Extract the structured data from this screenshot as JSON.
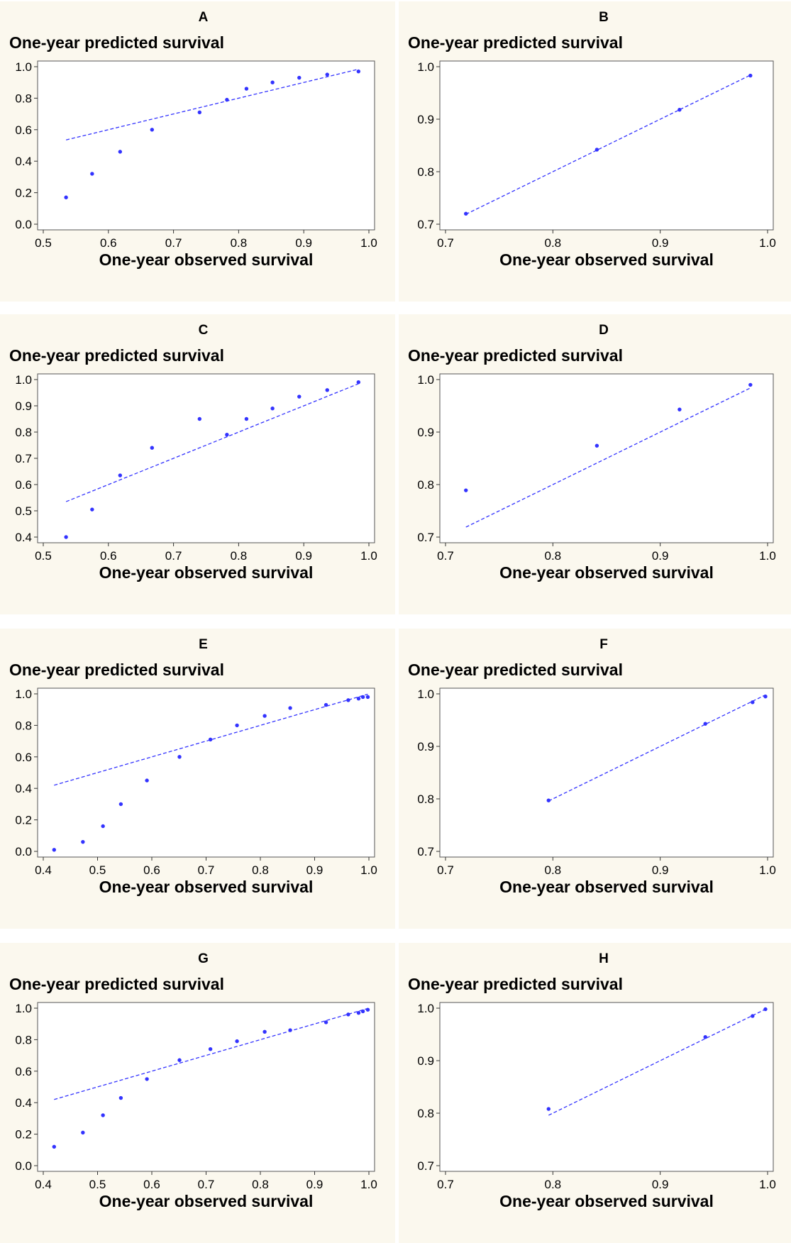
{
  "chart_data": [
    {
      "type": "scatter",
      "panel": "A",
      "xlabel": "One-year observed survival",
      "ylabel": "One-year predicted survival",
      "xlim": [
        0.5,
        1.0
      ],
      "ylim": [
        0.0,
        1.0
      ],
      "xticks": [
        "0.5",
        "0.6",
        "0.7",
        "0.8",
        "0.9",
        "1.0"
      ],
      "yticks": [
        "0.0",
        "0.2",
        "0.4",
        "0.6",
        "0.8",
        "1.0"
      ],
      "points": [
        [
          0.535,
          0.17
        ],
        [
          0.575,
          0.32
        ],
        [
          0.618,
          0.46
        ],
        [
          0.667,
          0.6
        ],
        [
          0.74,
          0.71
        ],
        [
          0.782,
          0.79
        ],
        [
          0.812,
          0.86
        ],
        [
          0.852,
          0.9
        ],
        [
          0.893,
          0.93
        ],
        [
          0.936,
          0.95
        ],
        [
          0.984,
          0.97
        ]
      ],
      "line": [
        [
          0.535,
          0.535
        ],
        [
          0.984,
          0.984
        ]
      ]
    },
    {
      "type": "scatter",
      "panel": "B",
      "xlabel": "One-year observed survival",
      "ylabel": "One-year predicted survival",
      "xlim": [
        0.7,
        1.0
      ],
      "ylim": [
        0.7,
        1.0
      ],
      "xticks": [
        "0.7",
        "0.8",
        "0.9",
        "1.0"
      ],
      "yticks": [
        "0.7",
        "0.8",
        "0.9",
        "1.0"
      ],
      "points": [
        [
          0.719,
          0.72
        ],
        [
          0.841,
          0.842
        ],
        [
          0.918,
          0.918
        ],
        [
          0.984,
          0.983
        ]
      ],
      "line": [
        [
          0.719,
          0.719
        ],
        [
          0.984,
          0.984
        ]
      ]
    },
    {
      "type": "scatter",
      "panel": "C",
      "xlabel": "One-year observed survival",
      "ylabel": "One-year predicted survival",
      "xlim": [
        0.5,
        1.0
      ],
      "ylim": [
        0.4,
        1.0
      ],
      "xticks": [
        "0.5",
        "0.6",
        "0.7",
        "0.8",
        "0.9",
        "1.0"
      ],
      "yticks": [
        "0.4",
        "0.5",
        "0.6",
        "0.7",
        "0.8",
        "0.9",
        "1.0"
      ],
      "points": [
        [
          0.535,
          0.4
        ],
        [
          0.575,
          0.505
        ],
        [
          0.618,
          0.635
        ],
        [
          0.667,
          0.74
        ],
        [
          0.74,
          0.85
        ],
        [
          0.782,
          0.79
        ],
        [
          0.812,
          0.85
        ],
        [
          0.852,
          0.89
        ],
        [
          0.893,
          0.935
        ],
        [
          0.936,
          0.96
        ],
        [
          0.984,
          0.99
        ]
      ],
      "line": [
        [
          0.535,
          0.535
        ],
        [
          0.984,
          0.984
        ]
      ]
    },
    {
      "type": "scatter",
      "panel": "D",
      "xlabel": "One-year observed survival",
      "ylabel": "One-year predicted survival",
      "xlim": [
        0.7,
        1.0
      ],
      "ylim": [
        0.7,
        1.0
      ],
      "xticks": [
        "0.7",
        "0.8",
        "0.9",
        "1.0"
      ],
      "yticks": [
        "0.7",
        "0.8",
        "0.9",
        "1.0"
      ],
      "points": [
        [
          0.719,
          0.789
        ],
        [
          0.841,
          0.874
        ],
        [
          0.918,
          0.943
        ],
        [
          0.984,
          0.99
        ]
      ],
      "line": [
        [
          0.719,
          0.719
        ],
        [
          0.984,
          0.984
        ]
      ]
    },
    {
      "type": "scatter",
      "panel": "E",
      "xlabel": "One-year observed survival",
      "ylabel": "One-year predicted survival",
      "xlim": [
        0.4,
        1.0
      ],
      "ylim": [
        0.0,
        1.0
      ],
      "xticks": [
        "0.4",
        "0.5",
        "0.6",
        "0.7",
        "0.8",
        "0.9",
        "1.0"
      ],
      "yticks": [
        "0.0",
        "0.2",
        "0.4",
        "0.6",
        "0.8",
        "1.0"
      ],
      "points": [
        [
          0.42,
          0.01
        ],
        [
          0.473,
          0.06
        ],
        [
          0.51,
          0.16
        ],
        [
          0.543,
          0.3
        ],
        [
          0.591,
          0.45
        ],
        [
          0.651,
          0.6
        ],
        [
          0.708,
          0.71
        ],
        [
          0.757,
          0.8
        ],
        [
          0.808,
          0.86
        ],
        [
          0.855,
          0.91
        ],
        [
          0.921,
          0.93
        ],
        [
          0.962,
          0.96
        ],
        [
          0.981,
          0.97
        ],
        [
          0.989,
          0.98
        ],
        [
          0.998,
          0.98
        ]
      ],
      "line": [
        [
          0.42,
          0.42
        ],
        [
          0.998,
          0.998
        ]
      ]
    },
    {
      "type": "scatter",
      "panel": "F",
      "xlabel": "One-year observed survival",
      "ylabel": "One-year predicted survival",
      "xlim": [
        0.7,
        1.0
      ],
      "ylim": [
        0.7,
        1.0
      ],
      "xticks": [
        "0.7",
        "0.8",
        "0.9",
        "1.0"
      ],
      "yticks": [
        "0.7",
        "0.8",
        "0.9",
        "1.0"
      ],
      "points": [
        [
          0.796,
          0.797
        ],
        [
          0.942,
          0.943
        ],
        [
          0.986,
          0.984
        ],
        [
          0.998,
          0.995
        ]
      ],
      "line": [
        [
          0.796,
          0.796
        ],
        [
          0.998,
          0.998
        ]
      ]
    },
    {
      "type": "scatter",
      "panel": "G",
      "xlabel": "One-year observed survival",
      "ylabel": "One-year predicted survival",
      "xlim": [
        0.4,
        1.0
      ],
      "ylim": [
        0.0,
        1.0
      ],
      "xticks": [
        "0.4",
        "0.5",
        "0.6",
        "0.7",
        "0.8",
        "0.9",
        "1.0"
      ],
      "yticks": [
        "0.0",
        "0.2",
        "0.4",
        "0.6",
        "0.8",
        "1.0"
      ],
      "points": [
        [
          0.42,
          0.12
        ],
        [
          0.473,
          0.21
        ],
        [
          0.51,
          0.32
        ],
        [
          0.543,
          0.43
        ],
        [
          0.591,
          0.55
        ],
        [
          0.651,
          0.67
        ],
        [
          0.708,
          0.74
        ],
        [
          0.757,
          0.79
        ],
        [
          0.808,
          0.85
        ],
        [
          0.855,
          0.86
        ],
        [
          0.921,
          0.91
        ],
        [
          0.962,
          0.96
        ],
        [
          0.981,
          0.97
        ],
        [
          0.989,
          0.98
        ],
        [
          0.998,
          0.99
        ]
      ],
      "line": [
        [
          0.42,
          0.42
        ],
        [
          0.998,
          0.998
        ]
      ]
    },
    {
      "type": "scatter",
      "panel": "H",
      "xlabel": "One-year observed survival",
      "ylabel": "One-year predicted survival",
      "xlim": [
        0.7,
        1.0
      ],
      "ylim": [
        0.7,
        1.0
      ],
      "xticks": [
        "0.7",
        "0.8",
        "0.9",
        "1.0"
      ],
      "yticks": [
        "0.7",
        "0.8",
        "0.9",
        "1.0"
      ],
      "points": [
        [
          0.796,
          0.808
        ],
        [
          0.942,
          0.945
        ],
        [
          0.986,
          0.985
        ],
        [
          0.998,
          0.998
        ]
      ],
      "line": [
        [
          0.796,
          0.796
        ],
        [
          0.998,
          0.998
        ]
      ]
    }
  ],
  "colors": {
    "marker": "#3333ff",
    "line": "#3333ff",
    "panel_bg": "#fbf8ee"
  }
}
